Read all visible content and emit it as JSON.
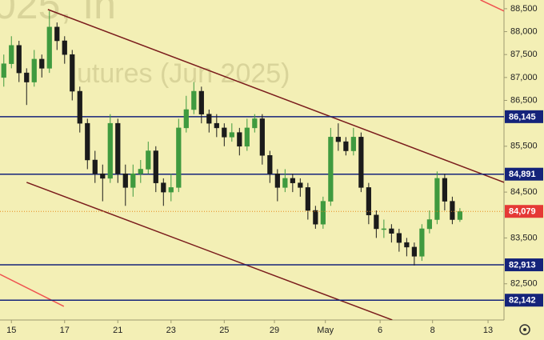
{
  "chart_data": {
    "type": "candlestick",
    "watermark": [
      "025, In",
      "utures (Jun 2025)"
    ],
    "open": [
      87000,
      87300,
      87700,
      87100,
      86900,
      87400,
      87200,
      88100,
      87800,
      87500,
      86700,
      86000,
      85200,
      84900,
      84800,
      86000,
      84900,
      84600,
      84900,
      85000,
      85400,
      84700,
      84500,
      84600,
      85900,
      86300,
      86700,
      86200,
      86000,
      85900,
      85700,
      85800,
      85500,
      85900,
      86100,
      85300,
      84900,
      84600,
      84800,
      84700,
      84600,
      84100,
      83800,
      84300,
      85700,
      85600,
      85400,
      85700,
      84600,
      84000,
      83700,
      83700,
      83600,
      83400,
      83300,
      83100,
      83700,
      83900,
      84800,
      84300,
      83900
    ],
    "high": [
      87500,
      87900,
      87800,
      87200,
      87600,
      87500,
      88450,
      88200,
      87900,
      87600,
      86800,
      86100,
      85400,
      85100,
      86200,
      86100,
      85100,
      85100,
      85200,
      85600,
      85500,
      84800,
      84900,
      86100,
      86600,
      86900,
      86800,
      86300,
      86200,
      86000,
      86000,
      85900,
      86100,
      86200,
      86200,
      85400,
      85000,
      85000,
      84900,
      84800,
      84700,
      84200,
      84400,
      85900,
      86000,
      85700,
      85900,
      85800,
      84700,
      84100,
      83900,
      83800,
      83700,
      83500,
      83400,
      83800,
      84100,
      84950,
      84900,
      84400,
      84150
    ],
    "low": [
      86800,
      87200,
      86900,
      86400,
      86800,
      87000,
      87100,
      87600,
      87300,
      86500,
      85800,
      85000,
      84700,
      84300,
      84700,
      84700,
      84200,
      84400,
      84700,
      84900,
      84500,
      84200,
      84300,
      84500,
      85800,
      86200,
      86000,
      85800,
      85700,
      85500,
      85600,
      85300,
      85400,
      85800,
      85100,
      84700,
      84300,
      84500,
      84500,
      84400,
      83900,
      83700,
      83700,
      84200,
      85400,
      85300,
      85300,
      84500,
      83800,
      83500,
      83500,
      83400,
      83200,
      83100,
      82900,
      83000,
      83600,
      83800,
      84100,
      83800,
      83850
    ],
    "close": [
      87300,
      87700,
      87100,
      86900,
      87400,
      87200,
      88100,
      87800,
      87500,
      86700,
      86000,
      85200,
      84900,
      84800,
      86000,
      84900,
      84600,
      84900,
      85000,
      85400,
      84700,
      84500,
      84600,
      85900,
      86300,
      86700,
      86200,
      86000,
      85900,
      85700,
      85800,
      85500,
      85900,
      86100,
      85300,
      84900,
      84600,
      84800,
      84700,
      84600,
      84100,
      83800,
      84300,
      85700,
      85600,
      85400,
      85700,
      84600,
      84000,
      83700,
      83700,
      83600,
      83400,
      83300,
      83100,
      83700,
      83900,
      84800,
      84300,
      83900,
      84079
    ],
    "up_color": "#3f9a3f",
    "down_color": "#1b1b1b",
    "xlim": [
      -0.5,
      65.8
    ],
    "ylim": [
      81710,
      88690
    ],
    "xticks": [
      {
        "value": 1,
        "label": "15"
      },
      {
        "value": 8,
        "label": "17"
      },
      {
        "value": 15,
        "label": "21"
      },
      {
        "value": 22,
        "label": "23"
      },
      {
        "value": 29,
        "label": "25"
      },
      {
        "value": 35.6,
        "label": "29"
      },
      {
        "value": 42.3,
        "label": "May"
      },
      {
        "value": 49.5,
        "label": "6"
      },
      {
        "value": 56.4,
        "label": "8"
      },
      {
        "value": 63.7,
        "label": "13"
      }
    ],
    "yticks": [
      {
        "value": 88500,
        "label": "88,500"
      },
      {
        "value": 88000,
        "label": "88,000"
      },
      {
        "value": 87500,
        "label": "87,500"
      },
      {
        "value": 87000,
        "label": "87,000"
      },
      {
        "value": 86500,
        "label": "86,500"
      },
      {
        "value": 85500,
        "label": "85,500"
      },
      {
        "value": 84500,
        "label": "84,500"
      },
      {
        "value": 83500,
        "label": "83,500"
      },
      {
        "value": 82500,
        "label": "82,500"
      }
    ],
    "grid": false,
    "levels": [
      {
        "value": 86145,
        "label": "86,145",
        "color": "#14237a"
      },
      {
        "value": 84891,
        "label": "84,891",
        "color": "#14237a"
      },
      {
        "value": 82913,
        "label": "82,913",
        "color": "#14237a"
      },
      {
        "value": 82142,
        "label": "82,142",
        "color": "#14237a"
      }
    ],
    "last_price": {
      "value": 84079,
      "label": "84,079",
      "color": "#e8891a",
      "box_color": "#e53935"
    },
    "trend_lines": [
      {
        "x": [
          5.8,
          65.8
        ],
        "y": [
          88483,
          84713
        ],
        "color": "#7a1c1c"
      },
      {
        "x": [
          3,
          51.1
        ],
        "y": [
          84713,
          81711
        ],
        "color": "#7a1c1c"
      },
      {
        "x": [
          62.7,
          65.8
        ],
        "y": [
          88692,
          88448
        ],
        "color": "#ef5350"
      },
      {
        "x": [
          -0.5,
          7.9
        ],
        "y": [
          82706,
          82008
        ],
        "color": "#ef5350"
      }
    ]
  }
}
